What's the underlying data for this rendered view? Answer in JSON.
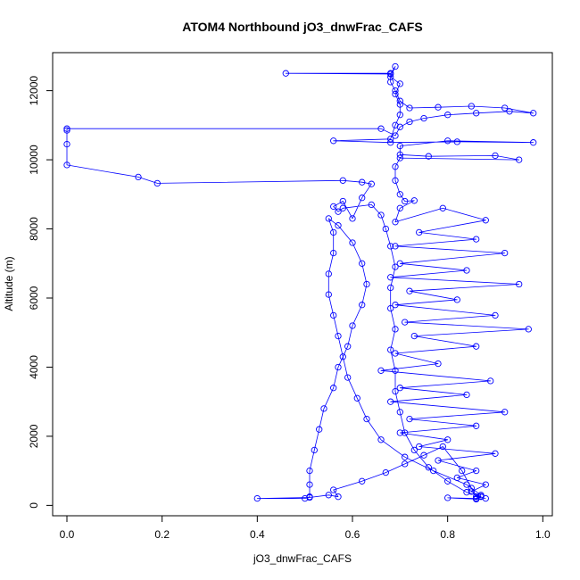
{
  "chart_data": {
    "type": "line",
    "title": "ATOM4 Northbound jO3_dnwFrac_CAFS",
    "xlabel": "jO3_dnwFrac_CAFS",
    "ylabel": "Altitude (m)",
    "xlim": [
      -0.03,
      1.02
    ],
    "ylim": [
      -300,
      13100
    ],
    "xticks": [
      0.0,
      0.2,
      0.4,
      0.6,
      0.8,
      1.0
    ],
    "xtick_labels": [
      "0.0",
      "0.2",
      "0.4",
      "0.6",
      "0.8",
      "1.0"
    ],
    "yticks": [
      0,
      2000,
      4000,
      6000,
      8000,
      10000,
      12000
    ],
    "ytick_labels": [
      "0",
      "2000",
      "4000",
      "6000",
      "8000",
      "10000",
      "12000"
    ],
    "grid": false,
    "legend": "none",
    "series_color": "#0000ff",
    "markers": "open-circle",
    "series": [
      {
        "name": "",
        "points": [
          [
            0.86,
            200
          ],
          [
            0.87,
            260
          ],
          [
            0.84,
            380
          ],
          [
            0.8,
            700
          ],
          [
            0.76,
            1100
          ],
          [
            0.73,
            1600
          ],
          [
            0.71,
            2100
          ],
          [
            0.7,
            2700
          ],
          [
            0.69,
            3300
          ],
          [
            0.69,
            3900
          ],
          [
            0.68,
            4500
          ],
          [
            0.69,
            5100
          ],
          [
            0.68,
            5700
          ],
          [
            0.68,
            6300
          ],
          [
            0.69,
            6900
          ],
          [
            0.68,
            7500
          ],
          [
            0.67,
            8000
          ],
          [
            0.66,
            8400
          ],
          [
            0.64,
            8700
          ],
          [
            0.58,
            8600
          ],
          [
            0.57,
            8500
          ],
          [
            0.56,
            8650
          ],
          [
            0.58,
            8800
          ],
          [
            0.6,
            8300
          ],
          [
            0.62,
            8900
          ],
          [
            0.64,
            9300
          ],
          [
            0.62,
            9350
          ],
          [
            0.58,
            9400
          ],
          [
            0.19,
            9320
          ],
          [
            0.15,
            9500
          ],
          [
            0.0,
            9850
          ],
          [
            0.0,
            10450
          ],
          [
            0.0,
            10850
          ],
          [
            0.0,
            10900
          ],
          [
            0.66,
            10900
          ],
          [
            0.69,
            10700
          ],
          [
            0.7,
            10950
          ],
          [
            0.72,
            11100
          ],
          [
            0.75,
            11200
          ],
          [
            0.8,
            11300
          ],
          [
            0.86,
            11350
          ],
          [
            0.93,
            11400
          ],
          [
            0.98,
            11350
          ],
          [
            0.92,
            11500
          ],
          [
            0.85,
            11550
          ],
          [
            0.78,
            11520
          ],
          [
            0.72,
            11500
          ],
          [
            0.7,
            11700
          ],
          [
            0.69,
            12000
          ],
          [
            0.68,
            12250
          ],
          [
            0.68,
            12500
          ],
          [
            0.46,
            12500
          ],
          [
            0.68,
            12480
          ],
          [
            0.69,
            12700
          ],
          [
            0.68,
            12400
          ],
          [
            0.7,
            12200
          ],
          [
            0.69,
            11900
          ],
          [
            0.7,
            11600
          ],
          [
            0.7,
            11300
          ],
          [
            0.69,
            11000
          ],
          [
            0.68,
            10600
          ],
          [
            0.56,
            10550
          ],
          [
            0.68,
            10500
          ],
          [
            0.82,
            10520
          ],
          [
            0.98,
            10500
          ],
          [
            0.8,
            10550
          ],
          [
            0.7,
            10400
          ],
          [
            0.7,
            10150
          ],
          [
            0.76,
            10100
          ],
          [
            0.9,
            10120
          ],
          [
            0.95,
            10000
          ],
          [
            0.7,
            10050
          ],
          [
            0.69,
            9800
          ],
          [
            0.69,
            9400
          ],
          [
            0.7,
            9000
          ],
          [
            0.71,
            8800
          ],
          [
            0.73,
            8820
          ],
          [
            0.7,
            8600
          ],
          [
            0.69,
            8200
          ],
          [
            0.79,
            8600
          ],
          [
            0.88,
            8250
          ],
          [
            0.74,
            7900
          ],
          [
            0.86,
            7700
          ],
          [
            0.69,
            7500
          ],
          [
            0.92,
            7300
          ],
          [
            0.7,
            7000
          ],
          [
            0.84,
            6800
          ],
          [
            0.68,
            6600
          ],
          [
            0.95,
            6400
          ],
          [
            0.72,
            6200
          ],
          [
            0.82,
            5950
          ],
          [
            0.69,
            5800
          ],
          [
            0.9,
            5500
          ],
          [
            0.71,
            5300
          ],
          [
            0.97,
            5100
          ],
          [
            0.73,
            4900
          ],
          [
            0.86,
            4600
          ],
          [
            0.69,
            4400
          ],
          [
            0.78,
            4100
          ],
          [
            0.66,
            3900
          ],
          [
            0.89,
            3600
          ],
          [
            0.7,
            3400
          ],
          [
            0.84,
            3200
          ],
          [
            0.68,
            3000
          ],
          [
            0.92,
            2700
          ],
          [
            0.72,
            2500
          ],
          [
            0.86,
            2300
          ],
          [
            0.7,
            2100
          ],
          [
            0.8,
            1900
          ],
          [
            0.74,
            1700
          ],
          [
            0.9,
            1500
          ],
          [
            0.78,
            1300
          ],
          [
            0.86,
            1000
          ],
          [
            0.82,
            800
          ],
          [
            0.88,
            600
          ],
          [
            0.85,
            400
          ],
          [
            0.87,
            250
          ],
          [
            0.86,
            180
          ],
          [
            0.8,
            220
          ],
          [
            0.86,
            200
          ],
          [
            0.87,
            300
          ],
          [
            0.84,
            600
          ],
          [
            0.77,
            1000
          ],
          [
            0.71,
            1400
          ],
          [
            0.66,
            1900
          ],
          [
            0.63,
            2500
          ],
          [
            0.61,
            3100
          ],
          [
            0.59,
            3700
          ],
          [
            0.58,
            4300
          ],
          [
            0.57,
            4900
          ],
          [
            0.56,
            5500
          ],
          [
            0.55,
            6100
          ],
          [
            0.55,
            6700
          ],
          [
            0.56,
            7300
          ],
          [
            0.56,
            7900
          ],
          [
            0.55,
            8300
          ],
          [
            0.57,
            8100
          ],
          [
            0.6,
            7600
          ],
          [
            0.62,
            7000
          ],
          [
            0.63,
            6400
          ],
          [
            0.62,
            5800
          ],
          [
            0.6,
            5200
          ],
          [
            0.59,
            4600
          ],
          [
            0.57,
            4000
          ],
          [
            0.56,
            3400
          ],
          [
            0.54,
            2800
          ],
          [
            0.53,
            2200
          ],
          [
            0.52,
            1600
          ],
          [
            0.51,
            1000
          ],
          [
            0.51,
            600
          ],
          [
            0.51,
            250
          ],
          [
            0.5,
            200
          ],
          [
            0.4,
            200
          ],
          [
            0.51,
            230
          ],
          [
            0.55,
            300
          ],
          [
            0.57,
            250
          ],
          [
            0.56,
            450
          ],
          [
            0.62,
            700
          ],
          [
            0.67,
            950
          ],
          [
            0.71,
            1200
          ],
          [
            0.75,
            1450
          ],
          [
            0.79,
            1700
          ],
          [
            0.83,
            1000
          ],
          [
            0.85,
            500
          ],
          [
            0.86,
            250
          ],
          [
            0.88,
            200
          ]
        ]
      }
    ]
  }
}
